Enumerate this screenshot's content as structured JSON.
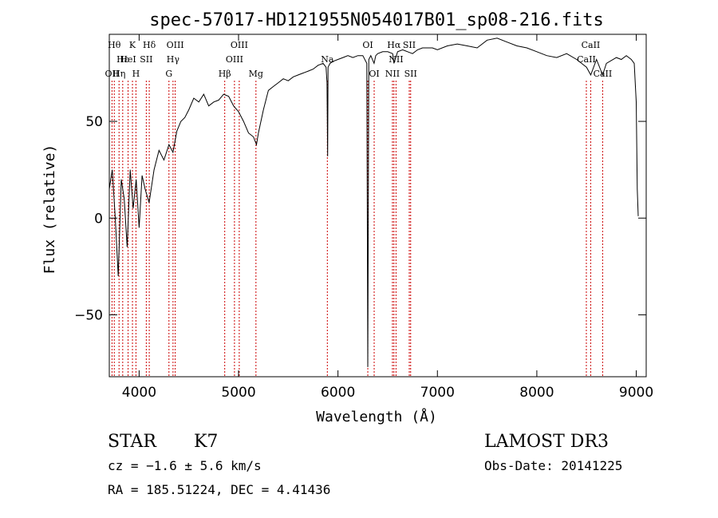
{
  "chart_data": {
    "type": "line",
    "title": "spec-57017-HD121955N054017B01_sp08-216.fits",
    "xlabel": "Wavelength (Å)",
    "ylabel": "Flux (relative)",
    "xlim": [
      3700,
      9100
    ],
    "ylim": [
      -82,
      95
    ],
    "xticks": [
      4000,
      5000,
      6000,
      7000,
      8000,
      9000
    ],
    "xtick_labels": [
      "4000",
      "5000",
      "6000",
      "7000",
      "8000",
      "9000"
    ],
    "yticks": [
      50,
      0,
      -50
    ],
    "ytick_labels": [
      "50",
      "0",
      "−50"
    ],
    "line_color": "#000000",
    "marker_color": "#cc0000",
    "series": [
      {
        "x": [
          3700,
          3730,
          3760,
          3790,
          3820,
          3850,
          3880,
          3910,
          3940,
          3970,
          4000,
          4030,
          4060,
          4100,
          4150,
          4200,
          4250,
          4300,
          4340,
          4380,
          4420,
          4460,
          4500,
          4550,
          4600,
          4650,
          4700,
          4750,
          4800,
          4850,
          4900,
          4950,
          5000,
          5050,
          5100,
          5150,
          5180,
          5200,
          5250,
          5300,
          5350,
          5400,
          5450,
          5500,
          5550,
          5600,
          5650,
          5700,
          5750,
          5800,
          5850,
          5880,
          5890,
          5896,
          5900,
          5920,
          5950,
          6000,
          6050,
          6100,
          6150,
          6200,
          6250,
          6290,
          6300,
          6310,
          6330,
          6363,
          6380,
          6400,
          6450,
          6500,
          6550,
          6563,
          6600,
          6650,
          6700,
          6750,
          6800,
          6850,
          6900,
          6950,
          7000,
          7100,
          7200,
          7300,
          7400,
          7500,
          7600,
          7700,
          7800,
          7900,
          8000,
          8100,
          8200,
          8300,
          8400,
          8500,
          8542,
          8600,
          8662,
          8700,
          8800,
          8850,
          8900,
          8950,
          8980,
          9000,
          9010,
          9020
        ],
        "y": [
          15,
          25,
          0,
          -30,
          20,
          10,
          -15,
          25,
          5,
          20,
          -5,
          22,
          15,
          8,
          25,
          35,
          30,
          38,
          34,
          45,
          50,
          52,
          56,
          62,
          60,
          64,
          58,
          60,
          61,
          64,
          63,
          58,
          55,
          50,
          44,
          42,
          38,
          44,
          56,
          66,
          68,
          70,
          72,
          71,
          73,
          74,
          75,
          76,
          77,
          79,
          80,
          78,
          70,
          32,
          78,
          80,
          81,
          82,
          83,
          84,
          83,
          84,
          84,
          80,
          -77,
          82,
          84,
          80,
          84,
          85,
          86,
          86,
          85,
          80,
          86,
          87,
          86,
          85,
          87,
          88,
          88,
          88,
          87,
          89,
          90,
          89,
          88,
          92,
          93,
          91,
          89,
          88,
          86,
          84,
          83,
          85,
          82,
          78,
          74,
          82,
          74,
          80,
          83,
          82,
          84,
          82,
          80,
          60,
          15,
          1
        ]
      }
    ],
    "line_markers": [
      {
        "wl": 3727,
        "label": "OII",
        "row": 2
      },
      {
        "wl": 3750,
        "label": "Hθ",
        "row": 0
      },
      {
        "wl": 3798,
        "label": "Hη",
        "row": 2
      },
      {
        "wl": 3835,
        "label": "Hε",
        "row": 1
      },
      {
        "wl": 3889,
        "label": "HeI",
        "row": 1
      },
      {
        "wl": 3933,
        "label": "K",
        "row": 0
      },
      {
        "wl": 3968,
        "label": "H",
        "row": 2
      },
      {
        "wl": 4072,
        "label": "SII",
        "row": 1
      },
      {
        "wl": 4102,
        "label": "Hδ",
        "row": 0
      },
      {
        "wl": 4300,
        "label": "G",
        "row": 2
      },
      {
        "wl": 4341,
        "label": "Hγ",
        "row": 1
      },
      {
        "wl": 4363,
        "label": "OIII",
        "row": 0
      },
      {
        "wl": 4861,
        "label": "Hβ",
        "row": 2
      },
      {
        "wl": 4959,
        "label": "OIII",
        "row": 1
      },
      {
        "wl": 5007,
        "label": "OIII",
        "row": 0
      },
      {
        "wl": 5175,
        "label": "Mg",
        "row": 2
      },
      {
        "wl": 5893,
        "label": "Na",
        "row": 1
      },
      {
        "wl": 6300,
        "label": "OI",
        "row": 0
      },
      {
        "wl": 6364,
        "label": "OI",
        "row": 2
      },
      {
        "wl": 6548,
        "label": "NII",
        "row": 2
      },
      {
        "wl": 6563,
        "label": "Hα",
        "row": 0
      },
      {
        "wl": 6584,
        "label": "NII",
        "row": 1
      },
      {
        "wl": 6717,
        "label": "SII",
        "row": 0
      },
      {
        "wl": 6731,
        "label": "SII",
        "row": 2
      },
      {
        "wl": 8498,
        "label": "CaII",
        "row": 1
      },
      {
        "wl": 8542,
        "label": "CaII",
        "row": 0
      },
      {
        "wl": 8662,
        "label": "CaII",
        "row": 2
      }
    ]
  },
  "info": {
    "class": "STAR",
    "subclass": "K7",
    "survey": "LAMOST DR3",
    "cz": "cz = −1.6 ± 5.6 km/s",
    "obs_date": "Obs-Date: 20141225",
    "radec": "RA = 185.51224, DEC =   4.41436"
  }
}
